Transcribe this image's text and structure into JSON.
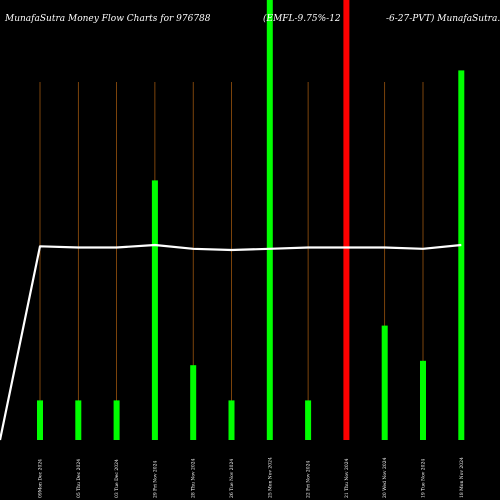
{
  "chart_data": {
    "type": "bar",
    "title_left": "MunafaSutra  Money Flow  Charts for 976788",
    "title_mid": "(EMFL-9.75%-12",
    "title_right": "-6-27-PVT) MunafaSutra.",
    "categories": [
      "09Mon Dec 2024",
      "05 Thu Dec 2024",
      "03 Tue Dec 2024",
      "29 Fri Nov 2024",
      "28 Thu Nov 2024",
      "26 Tue Nov 2024",
      "25 Mon Nov 2024",
      "22 Fri Nov 2024",
      "21 Thu Nov 2024",
      "20 Wed Nov 2024",
      "19 Tue Nov 2024",
      "18 Mon Nov 2024"
    ],
    "bar_heights": [
      0.09,
      0.09,
      0.09,
      0.59,
      0.17,
      0.09,
      1.0,
      0.09,
      1.0,
      0.26,
      0.18,
      0.84
    ],
    "bar_colors": [
      "#00ff00",
      "#00ff00",
      "#00ff00",
      "#00ff00",
      "#00ff00",
      "#00ff00",
      "#00ff00",
      "#00ff00",
      "#ff0000",
      "#00ff00",
      "#00ff00",
      "#00ff00"
    ],
    "wide_bars": [
      false,
      false,
      false,
      false,
      false,
      false,
      true,
      false,
      true,
      false,
      false,
      false
    ],
    "line_values": [
      0.775,
      0.77,
      0.77,
      0.78,
      0.765,
      0.76,
      0.765,
      0.77,
      0.77,
      0.77,
      0.765,
      0.78
    ],
    "line_start_value": 0.0,
    "colors": {
      "background": "#000000",
      "line": "#ffffff",
      "gridline": "#b06010",
      "up_bar": "#00ff00",
      "down_bar": "#ff0000"
    }
  }
}
